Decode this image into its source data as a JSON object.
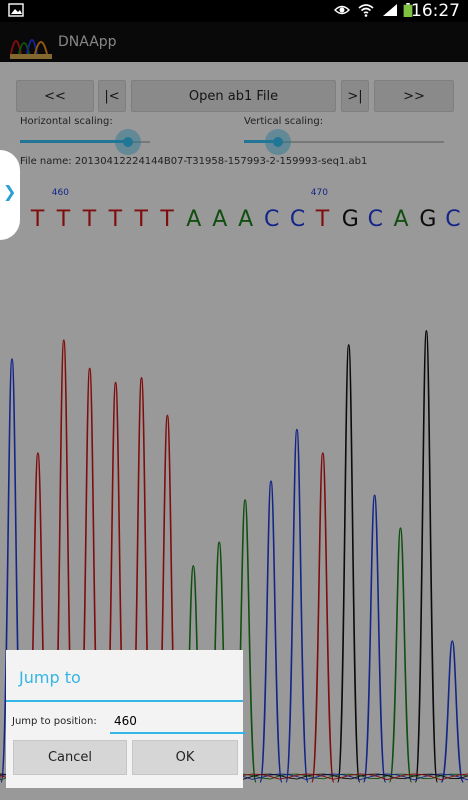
{
  "status_bar": {
    "time": "16:27",
    "icons": [
      "image-notification-icon",
      "eye-icon",
      "wifi-icon",
      "signal-icon",
      "battery-icon"
    ]
  },
  "action_bar": {
    "title": "DNAApp"
  },
  "toolbar": {
    "first_label": "<<",
    "start_label": "|<",
    "open_label": "Open ab1 File",
    "end_label": ">|",
    "last_label": ">>"
  },
  "scaling": {
    "horizontal_label": "Horizontal scaling:",
    "vertical_label": "Vertical scaling:",
    "horizontal_value": 0.83,
    "vertical_value": 0.17
  },
  "file": {
    "name": "File name: 20130412224144B07-T31958-157993-2-159993-seq1.ab1"
  },
  "sequence": {
    "bases": [
      "C",
      "T",
      "T",
      "T",
      "T",
      "T",
      "T",
      "A",
      "A",
      "A",
      "C",
      "C",
      "T",
      "G",
      "C",
      "A",
      "G",
      "C"
    ],
    "positions": [
      {
        "label": "460",
        "base_index": 2
      },
      {
        "label": "470",
        "base_index": 12
      }
    ]
  },
  "colors": {
    "A": "#1a7a1a",
    "C": "#1f3ad0",
    "G": "#111111",
    "T": "#c21414",
    "accent": "#33b5e5"
  },
  "dialog": {
    "title": "Jump to",
    "label": "Jump to position:",
    "value": "460",
    "cancel_label": "Cancel",
    "ok_label": "OK"
  }
}
